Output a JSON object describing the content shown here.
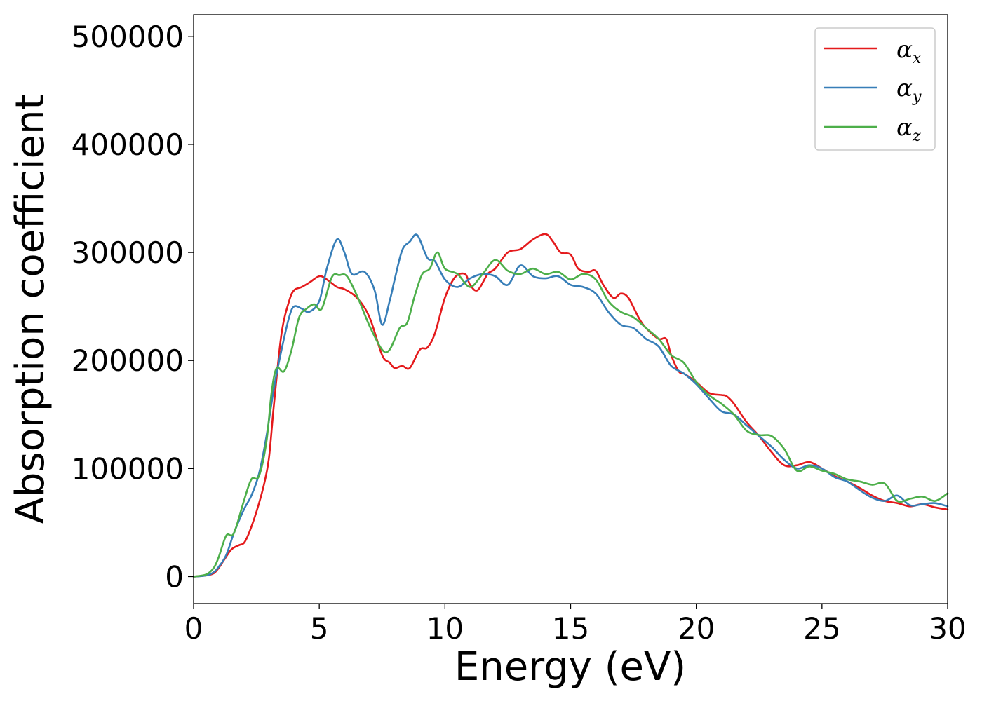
{
  "chart_data": {
    "type": "line",
    "xlabel": "Energy (eV)",
    "ylabel": "Absorption coefficient",
    "xlim": [
      0,
      30
    ],
    "ylim": [
      -25000,
      520000
    ],
    "xticks": [
      0,
      5,
      10,
      15,
      20,
      25,
      30
    ],
    "xtick_labels": [
      "0",
      "5",
      "10",
      "15",
      "20",
      "25",
      "30"
    ],
    "yticks": [
      0,
      100000,
      200000,
      300000,
      400000,
      500000
    ],
    "ytick_labels": [
      "0",
      "100000",
      "200000",
      "300000",
      "400000",
      "500000"
    ],
    "grid": false,
    "legend_position": "top-right",
    "series": [
      {
        "name": "α",
        "subscript": "x",
        "color": "#e41a1c",
        "x": [
          0,
          0.5,
          0.8,
          1.0,
          1.2,
          1.5,
          1.8,
          2.0,
          2.2,
          2.5,
          2.8,
          3.0,
          3.2,
          3.5,
          3.8,
          4.0,
          4.3,
          4.6,
          5.0,
          5.3,
          5.7,
          6.0,
          6.5,
          7.0,
          7.5,
          7.8,
          8.0,
          8.3,
          8.6,
          9.0,
          9.3,
          9.6,
          10.0,
          10.4,
          10.8,
          11.0,
          11.3,
          11.7,
          12.0,
          12.5,
          13.0,
          13.5,
          14.0,
          14.3,
          14.6,
          15.0,
          15.3,
          15.7,
          16.0,
          16.3,
          16.7,
          17.0,
          17.3,
          17.7,
          18.0,
          18.5,
          18.8,
          19.0,
          19.3,
          19.5,
          20.0,
          20.5,
          21.0,
          21.2,
          21.5,
          22.0,
          22.5,
          23.0,
          23.5,
          24.0,
          24.5,
          25.0,
          25.5,
          26.0,
          26.5,
          27.0,
          27.5,
          28.0,
          28.5,
          29.0,
          29.5,
          30.0
        ],
        "y": [
          0,
          1000,
          3000,
          8000,
          15000,
          25000,
          29000,
          31000,
          40000,
          60000,
          85000,
          110000,
          160000,
          225000,
          255000,
          265000,
          268000,
          272000,
          278000,
          275000,
          268000,
          266000,
          258000,
          240000,
          205000,
          198000,
          193000,
          195000,
          193000,
          210000,
          212000,
          225000,
          258000,
          277000,
          280000,
          270000,
          265000,
          280000,
          285000,
          300000,
          303000,
          312000,
          317000,
          310000,
          300000,
          298000,
          285000,
          282000,
          283000,
          270000,
          258000,
          262000,
          258000,
          240000,
          230000,
          220000,
          220000,
          205000,
          190000,
          188000,
          180000,
          170000,
          168000,
          167000,
          160000,
          143000,
          130000,
          115000,
          103000,
          103000,
          106000,
          100000,
          93000,
          88000,
          82000,
          75000,
          70000,
          68000,
          65000,
          67000,
          64000,
          62000
        ]
      },
      {
        "name": "α",
        "subscript": "y",
        "color": "#377eb8",
        "x": [
          0,
          0.5,
          0.8,
          1.0,
          1.3,
          1.6,
          2.0,
          2.3,
          2.6,
          2.9,
          3.2,
          3.5,
          3.8,
          4.0,
          4.3,
          4.6,
          5.0,
          5.3,
          5.7,
          6.0,
          6.3,
          6.8,
          7.2,
          7.5,
          7.8,
          8.0,
          8.3,
          8.6,
          8.9,
          9.3,
          9.6,
          10.0,
          10.5,
          11.0,
          11.5,
          12.0,
          12.5,
          13.0,
          13.5,
          14.0,
          14.5,
          15.0,
          15.5,
          16.0,
          16.5,
          17.0,
          17.5,
          18.0,
          18.5,
          19.0,
          19.5,
          20.0,
          20.5,
          21.0,
          21.5,
          22.0,
          22.5,
          23.0,
          23.5,
          24.0,
          24.5,
          25.0,
          25.5,
          26.0,
          26.5,
          27.0,
          27.5,
          28.0,
          28.5,
          29.0,
          29.5,
          30.0
        ],
        "y": [
          0,
          1000,
          4000,
          9000,
          20000,
          40000,
          62000,
          75000,
          95000,
          130000,
          175000,
          210000,
          240000,
          250000,
          248000,
          245000,
          255000,
          285000,
          312000,
          300000,
          280000,
          282000,
          265000,
          233000,
          255000,
          275000,
          302000,
          310000,
          316000,
          295000,
          292000,
          275000,
          268000,
          276000,
          280000,
          278000,
          270000,
          288000,
          278000,
          276000,
          278000,
          270000,
          268000,
          262000,
          245000,
          233000,
          230000,
          220000,
          213000,
          195000,
          188000,
          178000,
          165000,
          153000,
          150000,
          140000,
          130000,
          120000,
          108000,
          100000,
          103000,
          100000,
          92000,
          88000,
          80000,
          73000,
          70000,
          75000,
          66000,
          67000,
          68000,
          65000
        ]
      },
      {
        "name": "α",
        "subscript": "z",
        "color": "#4daf4a",
        "x": [
          0,
          0.5,
          0.8,
          1.0,
          1.3,
          1.6,
          2.0,
          2.3,
          2.6,
          2.9,
          3.1,
          3.3,
          3.6,
          3.9,
          4.2,
          4.5,
          4.8,
          5.1,
          5.5,
          5.8,
          6.1,
          6.5,
          7.0,
          7.5,
          7.8,
          8.2,
          8.5,
          8.8,
          9.1,
          9.4,
          9.7,
          10.0,
          10.5,
          11.0,
          11.5,
          12.0,
          12.5,
          13.0,
          13.5,
          14.0,
          14.5,
          15.0,
          15.5,
          16.0,
          16.5,
          17.0,
          17.5,
          18.0,
          18.5,
          19.0,
          19.5,
          20.0,
          20.5,
          21.0,
          21.5,
          22.0,
          22.5,
          23.0,
          23.5,
          24.0,
          24.5,
          25.0,
          25.5,
          26.0,
          26.5,
          27.0,
          27.5,
          28.0,
          28.5,
          29.0,
          29.5,
          30.0
        ],
        "y": [
          0,
          2000,
          8000,
          18000,
          38000,
          40000,
          70000,
          90000,
          93000,
          125000,
          170000,
          193000,
          190000,
          210000,
          240000,
          248000,
          252000,
          248000,
          277000,
          279000,
          278000,
          260000,
          232000,
          210000,
          210000,
          230000,
          235000,
          260000,
          280000,
          285000,
          300000,
          285000,
          280000,
          268000,
          280000,
          293000,
          283000,
          280000,
          285000,
          280000,
          282000,
          275000,
          280000,
          275000,
          255000,
          245000,
          240000,
          230000,
          220000,
          205000,
          198000,
          180000,
          168000,
          160000,
          150000,
          135000,
          131000,
          130000,
          118000,
          98000,
          102000,
          98000,
          95000,
          90000,
          88000,
          85000,
          86000,
          70000,
          72000,
          74000,
          70000,
          77000
        ]
      }
    ]
  }
}
